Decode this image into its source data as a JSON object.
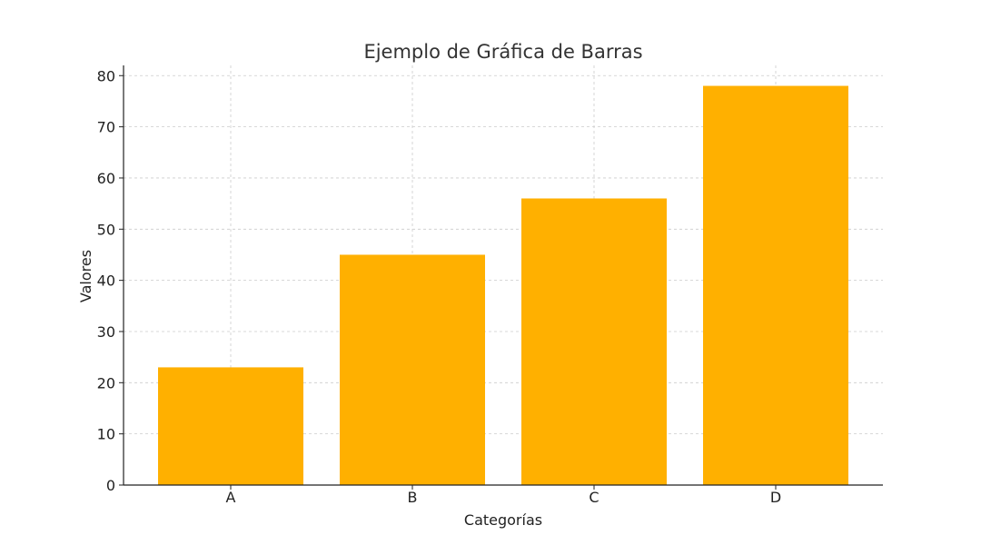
{
  "chart_data": {
    "type": "bar",
    "title": "Ejemplo de Gráfica de Barras",
    "xlabel": "Categorías",
    "ylabel": "Valores",
    "categories": [
      "A",
      "B",
      "C",
      "D"
    ],
    "values": [
      23,
      45,
      56,
      78
    ],
    "ylim": [
      0,
      82
    ],
    "yticks": [
      0,
      10,
      20,
      30,
      40,
      50,
      60,
      70,
      80
    ],
    "grid": true,
    "legend": "none",
    "bar_color": "#FFB000",
    "grid_color": "#cccccc",
    "axis_color": "#222222"
  }
}
